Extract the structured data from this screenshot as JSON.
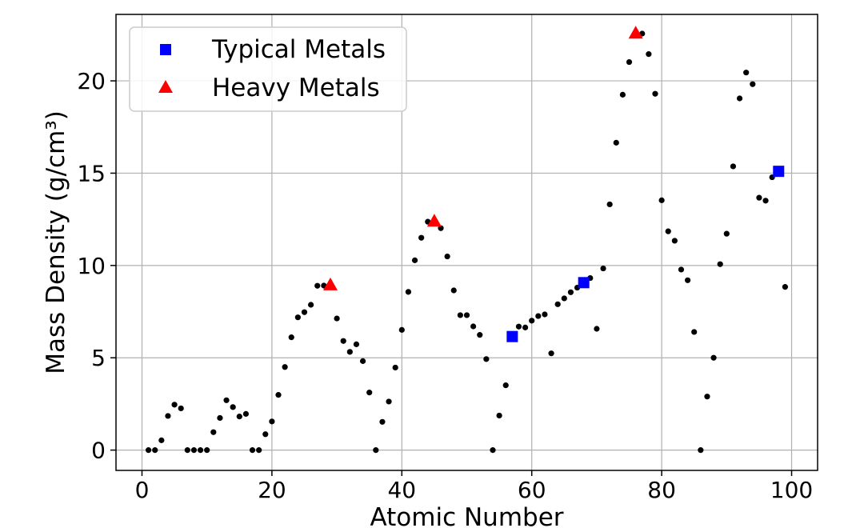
{
  "chart_data": {
    "type": "scatter",
    "title": "",
    "xlabel": "Atomic Number",
    "ylabel": "Mass Density (g/cm³)",
    "xlim": [
      -4,
      104
    ],
    "ylim": [
      -1.1,
      23.6
    ],
    "xticks": [
      0,
      20,
      40,
      60,
      80,
      100
    ],
    "yticks": [
      0,
      5,
      10,
      15,
      20
    ],
    "xtick_labels": [
      "0",
      "20",
      "40",
      "60",
      "80",
      "100"
    ],
    "ytick_labels": [
      "0",
      "5",
      "10",
      "15",
      "20"
    ],
    "grid": true,
    "legend_position": "top-left",
    "series": [
      {
        "marker": "circle",
        "color": "#000000",
        "x": [
          1,
          2,
          3,
          4,
          5,
          6,
          7,
          8,
          9,
          10,
          11,
          12,
          13,
          14,
          15,
          16,
          17,
          18,
          19,
          20,
          21,
          22,
          23,
          24,
          25,
          26,
          27,
          28,
          29,
          30,
          31,
          32,
          33,
          34,
          35,
          36,
          37,
          38,
          39,
          40,
          41,
          42,
          43,
          44,
          45,
          46,
          47,
          48,
          49,
          50,
          51,
          52,
          53,
          54,
          55,
          56,
          57,
          58,
          59,
          60,
          61,
          62,
          63,
          64,
          65,
          66,
          67,
          68,
          69,
          70,
          71,
          72,
          73,
          74,
          75,
          76,
          77,
          78,
          79,
          80,
          81,
          82,
          83,
          84,
          85,
          86,
          87,
          88,
          89,
          90,
          91,
          92,
          93,
          94,
          95,
          96,
          97,
          98,
          99
        ],
        "y": [
          0.0,
          0.0,
          0.53,
          1.85,
          2.46,
          2.26,
          0.0,
          0.0,
          0.0,
          0.0,
          0.97,
          1.74,
          2.7,
          2.33,
          1.82,
          1.96,
          0.0,
          0.0,
          0.86,
          1.55,
          2.99,
          4.5,
          6.11,
          7.19,
          7.47,
          7.87,
          8.9,
          8.91,
          8.96,
          7.13,
          5.91,
          5.32,
          5.73,
          4.82,
          3.12,
          0.0,
          1.53,
          2.63,
          4.47,
          6.51,
          8.57,
          10.28,
          11.5,
          12.37,
          12.41,
          12.02,
          10.49,
          8.65,
          7.31,
          7.31,
          6.7,
          6.24,
          4.93,
          0.0,
          1.87,
          3.51,
          6.15,
          6.69,
          6.64,
          7.01,
          7.26,
          7.35,
          5.24,
          7.9,
          8.22,
          8.55,
          8.8,
          9.07,
          9.32,
          6.57,
          9.84,
          13.31,
          16.65,
          19.25,
          21.02,
          22.59,
          22.56,
          21.45,
          19.3,
          13.53,
          11.85,
          11.34,
          9.78,
          9.2,
          6.4,
          0.0,
          2.9,
          5.0,
          10.07,
          11.72,
          15.37,
          19.05,
          20.45,
          19.82,
          13.67,
          13.51,
          14.78,
          15.1,
          8.84
        ]
      },
      {
        "name": "Typical Metals",
        "marker": "square",
        "color": "#0000ff",
        "x": [
          57,
          68,
          98
        ],
        "y": [
          6.15,
          9.07,
          15.1
        ]
      },
      {
        "name": "Heavy Metals",
        "marker": "triangle",
        "color": "#ff0000",
        "x": [
          29,
          45,
          76
        ],
        "y": [
          8.96,
          12.41,
          22.59
        ]
      }
    ]
  }
}
